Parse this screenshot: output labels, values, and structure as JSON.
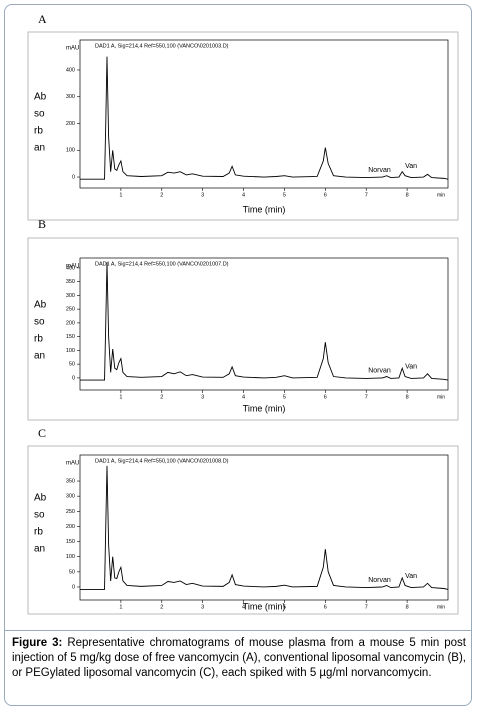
{
  "chart_data": [
    {
      "type": "line",
      "panel_label": "A",
      "header": "DAD1 A, Sig=214,4 Ref=550,100 (VANCO\\0201003.D)",
      "y_label_lines": [
        "Ab",
        "so",
        "rb",
        "an"
      ],
      "y_unit": "mAU",
      "x_unit": "min",
      "x_label": "Time (min)",
      "x": [
        0,
        0.6,
        0.63,
        0.66,
        0.7,
        0.75,
        0.8,
        0.85,
        0.9,
        0.95,
        1.0,
        1.05,
        1.15,
        1.5,
        2.0,
        2.15,
        2.3,
        2.45,
        2.6,
        2.75,
        3.0,
        3.5,
        3.65,
        3.72,
        3.8,
        4.0,
        4.5,
        4.8,
        5.0,
        5.2,
        5.8,
        5.95,
        6.0,
        6.07,
        6.2,
        6.5,
        7.0,
        7.4,
        7.5,
        7.6,
        7.8,
        7.88,
        7.95,
        8.1,
        8.4,
        8.5,
        8.6,
        8.9,
        9.0
      ],
      "series": [
        {
          "color": "#000000",
          "values": [
            -8,
            -8,
            200,
            450,
            150,
            20,
            100,
            30,
            25,
            45,
            60,
            20,
            5,
            2,
            5,
            18,
            15,
            20,
            8,
            12,
            3,
            2,
            15,
            40,
            8,
            3,
            0,
            2,
            5,
            0,
            2,
            60,
            110,
            50,
            5,
            0,
            -2,
            0,
            5,
            -2,
            0,
            20,
            5,
            -2,
            0,
            10,
            -2,
            -5,
            -8
          ]
        }
      ],
      "xlim": [
        0,
        9
      ],
      "xticks": [
        1,
        2,
        3,
        4,
        5,
        6,
        7,
        8
      ],
      "ylim": [
        -41,
        512
      ],
      "yticks": [
        0,
        100,
        200,
        300,
        400
      ],
      "annotations": [
        "Norvan",
        "Van"
      ]
    },
    {
      "type": "line",
      "panel_label": "B",
      "header": "DAD1 A, Sig=214,4 Ref=550,100 (VANCO\\0201007.D)",
      "y_label_lines": [
        "Ab",
        "so",
        "rb",
        "an"
      ],
      "y_unit": "mAU",
      "x_unit": "min",
      "x_label": "Time (min)",
      "x": [
        0,
        0.6,
        0.63,
        0.66,
        0.7,
        0.75,
        0.8,
        0.85,
        0.9,
        0.95,
        1.0,
        1.05,
        1.15,
        1.5,
        2.0,
        2.15,
        2.3,
        2.45,
        2.6,
        2.75,
        3.0,
        3.5,
        3.65,
        3.72,
        3.8,
        4.0,
        4.5,
        4.8,
        5.0,
        5.2,
        5.8,
        5.95,
        6.0,
        6.07,
        6.2,
        6.5,
        7.0,
        7.4,
        7.5,
        7.6,
        7.8,
        7.88,
        7.95,
        8.1,
        8.4,
        8.5,
        8.6,
        8.9,
        9.0
      ],
      "series": [
        {
          "color": "#000000",
          "values": [
            -8,
            -8,
            200,
            420,
            150,
            20,
            105,
            35,
            30,
            55,
            70,
            20,
            5,
            2,
            5,
            20,
            15,
            22,
            8,
            12,
            3,
            2,
            15,
            40,
            8,
            3,
            0,
            2,
            8,
            0,
            2,
            70,
            130,
            55,
            5,
            0,
            -2,
            0,
            5,
            -2,
            0,
            35,
            5,
            -2,
            0,
            15,
            -2,
            -5,
            -8
          ]
        }
      ],
      "xlim": [
        0,
        9
      ],
      "xticks": [
        1,
        2,
        3,
        4,
        5,
        6,
        7,
        8
      ],
      "ylim": [
        -44,
        436
      ],
      "yticks": [
        0,
        50,
        100,
        150,
        200,
        250,
        300,
        350,
        400
      ],
      "annotations": [
        "Norvan",
        "Van"
      ]
    },
    {
      "type": "line",
      "panel_label": "C",
      "header": "DAD1 A, Sig=214,4 Ref=550,100 (VANCO\\0201008.D)",
      "y_label_lines": [
        "Ab",
        "so",
        "rb",
        "an"
      ],
      "y_unit": "mAU",
      "x_unit": "min",
      "x_label": "Time (min)",
      "x": [
        0,
        0.6,
        0.63,
        0.66,
        0.7,
        0.75,
        0.8,
        0.85,
        0.9,
        0.95,
        1.0,
        1.05,
        1.15,
        1.5,
        2.0,
        2.15,
        2.3,
        2.45,
        2.6,
        2.75,
        3.0,
        3.5,
        3.65,
        3.72,
        3.8,
        4.0,
        4.5,
        4.8,
        5.0,
        5.2,
        5.8,
        5.95,
        6.0,
        6.07,
        6.2,
        6.5,
        7.0,
        7.4,
        7.5,
        7.6,
        7.8,
        7.88,
        7.95,
        8.1,
        8.4,
        8.5,
        8.6,
        8.9,
        9.0
      ],
      "series": [
        {
          "color": "#000000",
          "values": [
            -8,
            -8,
            200,
            400,
            140,
            20,
            100,
            30,
            28,
            50,
            65,
            20,
            5,
            2,
            5,
            18,
            15,
            20,
            8,
            12,
            3,
            2,
            15,
            40,
            8,
            3,
            0,
            2,
            6,
            0,
            2,
            65,
            125,
            50,
            5,
            0,
            -2,
            0,
            5,
            -2,
            0,
            30,
            5,
            -2,
            0,
            12,
            -2,
            -5,
            -8
          ]
        }
      ],
      "xlim": [
        0,
        9
      ],
      "xticks": [
        1,
        2,
        3,
        4,
        5,
        6,
        7,
        8
      ],
      "ylim": [
        -43,
        436
      ],
      "yticks": [
        0,
        50,
        100,
        150,
        200,
        250,
        300,
        350
      ],
      "annotations": [
        "Norvan",
        "Van"
      ]
    }
  ],
  "caption": {
    "label": "Figure 3:",
    "text": "Representative chromatograms of mouse plasma from a mouse 5 min post injection of 5 mg/kg dose of free vancomycin (A), conventional liposomal vancomycin (B), or PEGylated liposomal vancomycin (C), each spiked with 5 µg/ml norvancomycin."
  }
}
